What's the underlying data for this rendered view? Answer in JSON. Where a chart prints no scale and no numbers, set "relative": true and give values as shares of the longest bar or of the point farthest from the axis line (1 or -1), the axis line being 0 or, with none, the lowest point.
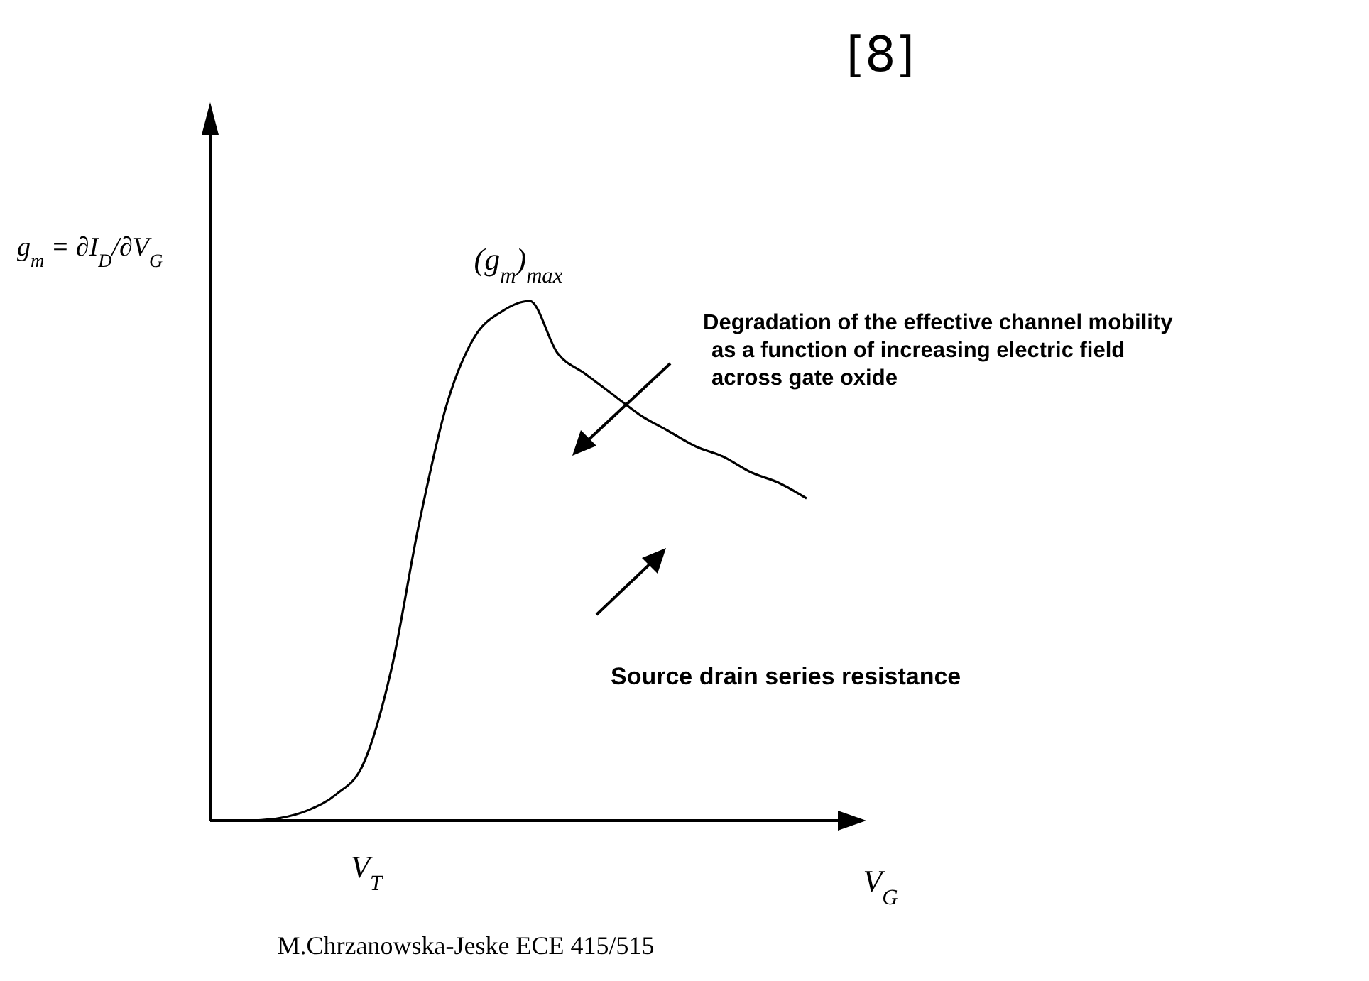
{
  "chart_data": {
    "type": "line",
    "relative": true,
    "xlabel": "V$_{G}$",
    "ylabel": "g$_{m}$ = ∂I$_{D}$/∂V$_{G}$",
    "categories": [
      null,
      null,
      null,
      null,
      null,
      null,
      null,
      null,
      null,
      null,
      null,
      null,
      null,
      null,
      null,
      null,
      null,
      null,
      null,
      null,
      null
    ],
    "series": [
      {
        "color": "#000000",
        "values": [
          0,
          0.005,
          0.02,
          0.05,
          0.11,
          0.29,
          0.57,
          0.8,
          0.93,
          0.98,
          1,
          0.9,
          0.86,
          0.82,
          0.78,
          0.75,
          0.72,
          0.7,
          0.67,
          0.65,
          0.62
        ]
      }
    ],
    "annotations": [
      "[8]",
      "(g$_{m}$)$_{max}$",
      "Degradation of the effective channel mobility\nas a function of increasing electric field\nacross gate oxide",
      "Source drain series resistance",
      "V$_{T}$",
      "M.Chrzanowska-Jeske ECE 415/515"
    ],
    "marker": "none",
    "line_style": "solid"
  }
}
